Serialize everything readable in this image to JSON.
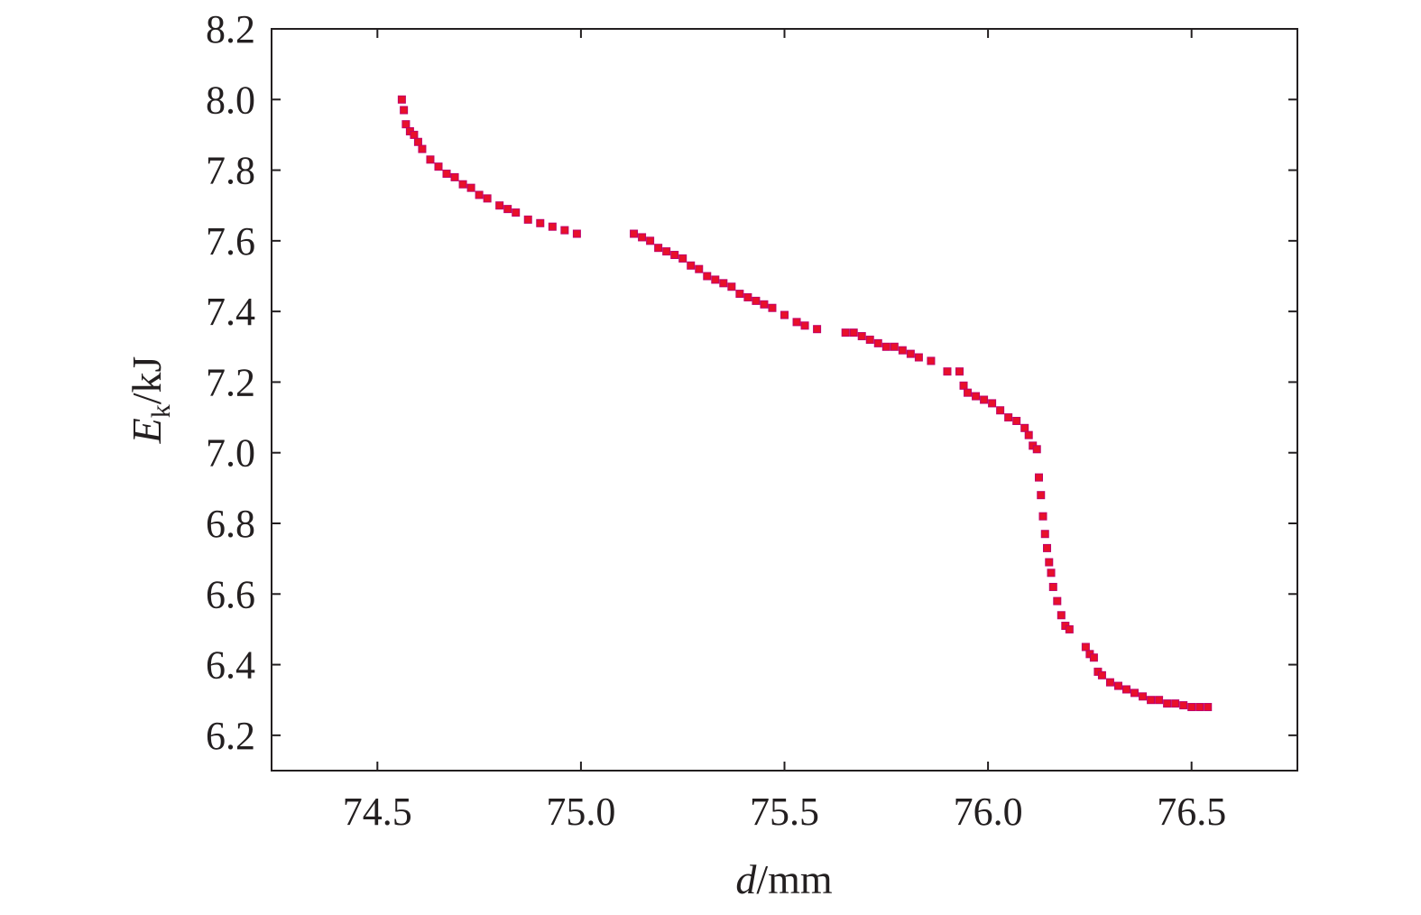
{
  "chart_data": {
    "type": "scatter",
    "title": "",
    "xlabel": {
      "var": "d",
      "unit": "/mm"
    },
    "ylabel": {
      "var": "E",
      "sub": "k",
      "unit": "/kJ"
    },
    "xlim": [
      74.24,
      76.76
    ],
    "ylim": [
      6.1,
      8.2
    ],
    "xticks": [
      74.5,
      75.0,
      75.5,
      76.0,
      76.5
    ],
    "xtick_labels": [
      "74.5",
      "75.0",
      "75.5",
      "76.0",
      "76.5"
    ],
    "yticks": [
      6.2,
      6.4,
      6.6,
      6.8,
      7.0,
      7.2,
      7.4,
      7.6,
      7.8,
      8.0,
      8.2
    ],
    "ytick_labels": [
      "6.2",
      "6.4",
      "6.6",
      "6.8",
      "7.0",
      "7.2",
      "7.4",
      "7.6",
      "7.8",
      "8.0",
      "8.2"
    ],
    "grid": false,
    "legend": "none",
    "marker_color": "#e8102a",
    "marker_edge_color": "#c0006a",
    "series": [
      {
        "x": [
          74.56,
          74.565,
          74.57,
          74.58,
          74.59,
          74.6,
          74.61,
          74.63,
          74.65,
          74.67,
          74.69,
          74.71,
          74.73,
          74.75,
          74.77,
          74.8,
          74.82,
          74.84,
          74.87,
          74.9,
          74.93,
          74.96,
          74.99,
          75.13,
          75.15,
          75.17,
          75.19,
          75.21,
          75.23,
          75.25,
          75.27,
          75.29,
          75.31,
          75.33,
          75.35,
          75.37,
          75.39,
          75.41,
          75.43,
          75.45,
          75.47,
          75.5,
          75.53,
          75.55,
          75.58,
          75.65,
          75.67,
          75.69,
          75.71,
          75.73,
          75.75,
          75.77,
          75.79,
          75.81,
          75.83,
          75.86,
          75.9,
          75.93,
          75.94,
          75.95,
          75.97,
          75.99,
          76.01,
          76.03,
          76.05,
          76.07,
          76.09,
          76.1,
          76.11,
          76.12,
          76.125,
          76.13,
          76.135,
          76.14,
          76.145,
          76.15,
          76.155,
          76.16,
          76.17,
          76.18,
          76.19,
          76.2,
          76.24,
          76.25,
          76.26,
          76.27,
          76.28,
          76.3,
          76.32,
          76.34,
          76.36,
          76.38,
          76.4,
          76.42,
          76.44,
          76.46,
          76.48,
          76.5,
          76.52,
          76.54
        ],
        "y": [
          8.0,
          7.97,
          7.93,
          7.91,
          7.9,
          7.88,
          7.86,
          7.83,
          7.81,
          7.79,
          7.78,
          7.76,
          7.75,
          7.73,
          7.72,
          7.7,
          7.69,
          7.68,
          7.66,
          7.65,
          7.64,
          7.63,
          7.62,
          7.62,
          7.61,
          7.6,
          7.58,
          7.57,
          7.56,
          7.55,
          7.53,
          7.52,
          7.5,
          7.49,
          7.48,
          7.47,
          7.45,
          7.44,
          7.43,
          7.42,
          7.41,
          7.39,
          7.37,
          7.36,
          7.35,
          7.34,
          7.34,
          7.33,
          7.32,
          7.31,
          7.3,
          7.3,
          7.29,
          7.28,
          7.27,
          7.26,
          7.23,
          7.23,
          7.19,
          7.17,
          7.16,
          7.15,
          7.14,
          7.12,
          7.1,
          7.09,
          7.07,
          7.05,
          7.02,
          7.01,
          6.93,
          6.88,
          6.82,
          6.77,
          6.73,
          6.69,
          6.66,
          6.62,
          6.58,
          6.54,
          6.51,
          6.5,
          6.45,
          6.43,
          6.42,
          6.38,
          6.37,
          6.35,
          6.34,
          6.33,
          6.32,
          6.31,
          6.3,
          6.3,
          6.29,
          6.29,
          6.285,
          6.28,
          6.28,
          6.28
        ]
      }
    ]
  }
}
